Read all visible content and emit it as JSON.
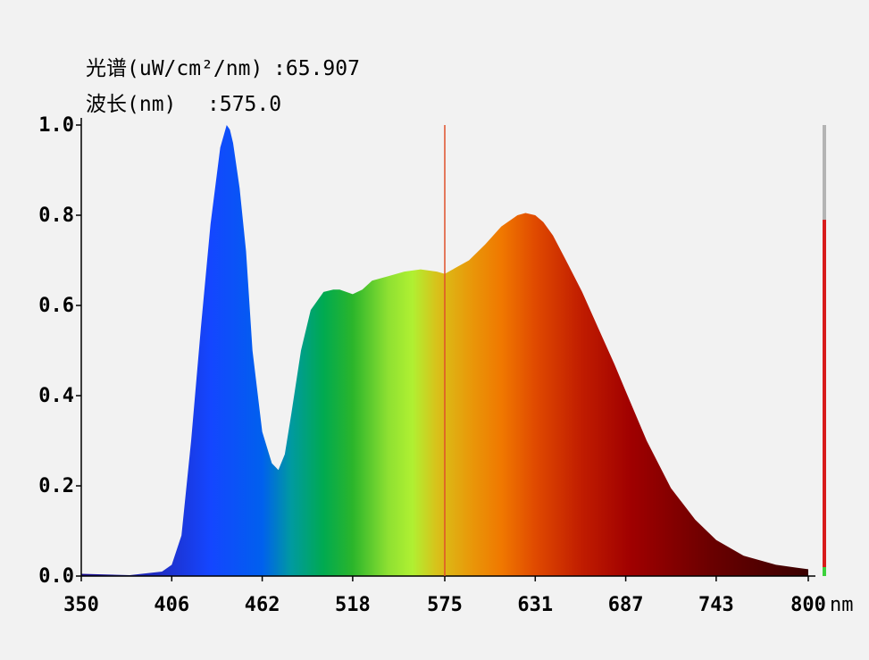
{
  "readout": {
    "spectrum_label": "光谱(uW/cm²/nm)",
    "spectrum_value": ":65.907",
    "wavelength_label": "波长(nm)",
    "wavelength_value": ":575.0"
  },
  "colors": {
    "background": "#f2f2f2",
    "cursor_line": "#e0502a",
    "side_bar_top": "#b4b4b4",
    "side_bar_fill": "#d81c1c",
    "side_bar_base": "#3cd23c"
  },
  "side_bar_level": 0.79,
  "chart_data": {
    "type": "area",
    "title": "",
    "xlabel": "",
    "ylabel": "",
    "x_unit": "nm",
    "xlim": [
      350,
      800
    ],
    "ylim": [
      0,
      1.0
    ],
    "x_ticks": [
      "350",
      "406",
      "462",
      "518",
      "575",
      "631",
      "687",
      "743",
      "800"
    ],
    "y_ticks": [
      "0.0",
      "0.2",
      "0.4",
      "0.6",
      "0.8",
      "1.0"
    ],
    "cursor_x": 575.0,
    "grid": false,
    "series": [
      {
        "x": [
          350,
          380,
          400,
          406,
          412,
          418,
          424,
          430,
          436,
          440,
          442,
          444,
          448,
          452,
          456,
          462,
          468,
          472,
          476,
          480,
          486,
          492,
          500,
          506,
          510,
          518,
          524,
          530,
          540,
          550,
          560,
          570,
          575,
          580,
          590,
          600,
          610,
          620,
          625,
          631,
          636,
          642,
          650,
          660,
          670,
          680,
          687,
          700,
          715,
          730,
          743,
          760,
          780,
          800
        ],
        "y": [
          0.005,
          0.002,
          0.01,
          0.025,
          0.09,
          0.3,
          0.55,
          0.78,
          0.95,
          1.0,
          0.99,
          0.96,
          0.86,
          0.72,
          0.5,
          0.32,
          0.25,
          0.235,
          0.27,
          0.36,
          0.5,
          0.59,
          0.63,
          0.635,
          0.635,
          0.625,
          0.635,
          0.655,
          0.665,
          0.675,
          0.68,
          0.675,
          0.67,
          0.68,
          0.7,
          0.735,
          0.775,
          0.8,
          0.805,
          0.8,
          0.785,
          0.755,
          0.7,
          0.63,
          0.55,
          0.47,
          0.41,
          0.3,
          0.195,
          0.125,
          0.08,
          0.045,
          0.025,
          0.015
        ]
      }
    ]
  }
}
